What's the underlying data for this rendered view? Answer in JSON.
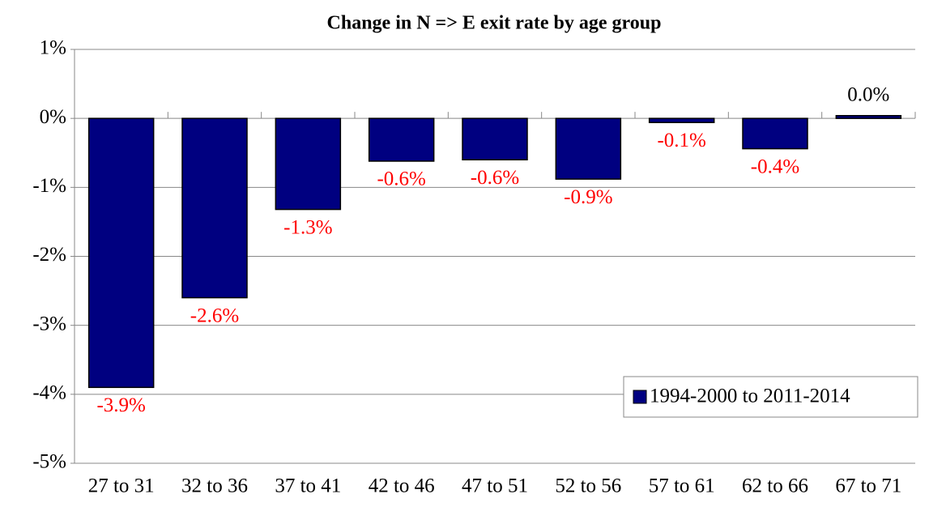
{
  "chart_data": {
    "type": "bar",
    "title": "Change in N => E exit rate by age group",
    "categories": [
      "27 to 31",
      "32 to 36",
      "37 to 41",
      "42 to 46",
      "47 to 51",
      "52 to 56",
      "57 to 61",
      "62 to 66",
      "67 to 71"
    ],
    "series": [
      {
        "name": "1994-2000 to 2011-2014",
        "color": "#000080",
        "values": [
          -3.9,
          -2.6,
          -1.32,
          -0.62,
          -0.6,
          -0.88,
          -0.06,
          -0.44,
          0.04
        ],
        "value_labels": [
          "-3.9%",
          "-2.6%",
          "-1.3%",
          "-0.6%",
          "-0.6%",
          "-0.9%",
          "-0.1%",
          "-0.4%",
          "0.0%"
        ],
        "value_label_colors": [
          "#ff0000",
          "#ff0000",
          "#ff0000",
          "#ff0000",
          "#ff0000",
          "#ff0000",
          "#ff0000",
          "#ff0000",
          "#000000"
        ]
      }
    ],
    "ylim": [
      -5,
      1
    ],
    "yticks": [
      {
        "value": -5,
        "label": "-5%"
      },
      {
        "value": -4,
        "label": "-4%"
      },
      {
        "value": -3,
        "label": "-3%"
      },
      {
        "value": -2,
        "label": "-2%"
      },
      {
        "value": -1,
        "label": "-1%"
      },
      {
        "value": 0,
        "label": "0%"
      },
      {
        "value": 1,
        "label": "1%"
      }
    ],
    "grid": true,
    "legend": "lower right"
  }
}
